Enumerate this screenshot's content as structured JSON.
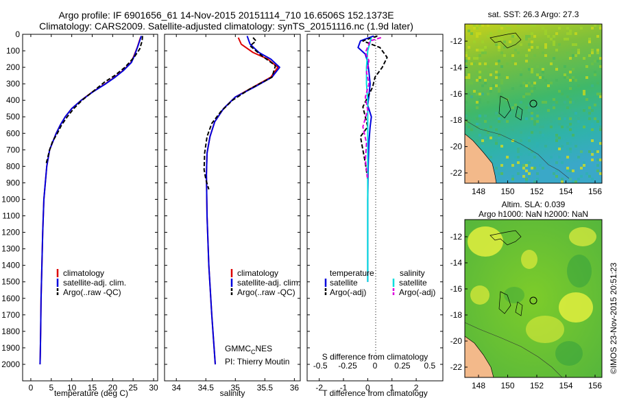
{
  "title": {
    "line1": "Argo profile: IF 6901656_61 14-Nov-2015 20151114_710 16.6506S 152.1373E",
    "line2": "Climatology: CARS2009. Satellite-adjusted climatology: synTS_20151116.nc (1.9d later)"
  },
  "map_sst": {
    "title": "sat. SST: 26.3 Argo: 27.3",
    "ytick_labels": [
      "-12",
      "-14",
      "-16",
      "-18",
      "-20",
      "-22"
    ],
    "xtick_labels": [
      "148",
      "150",
      "152",
      "154",
      "156"
    ]
  },
  "map_sla": {
    "title1": "Altim. SLA: 0.039",
    "title2": "Argo h1000: NaN h2000: NaN",
    "ytick_labels": [
      "-12",
      "-14",
      "-16",
      "-18",
      "-20",
      "-22"
    ],
    "xtick_labels": [
      "148",
      "150",
      "152",
      "154",
      "156"
    ]
  },
  "footer_stamp": "©IMOS 23-Nov-2015 20:51:23",
  "colors": {
    "climatology": "#dd0000",
    "satellite_adj": "#0000dd",
    "argo": "#000000",
    "sal_satellite": "#00dddd",
    "sal_argo": "#dd00dd"
  },
  "chart_data": [
    {
      "type": "line",
      "xlabel": "temperature (deg C)",
      "ylabel": "",
      "xlim": [
        -2,
        31
      ],
      "ylim": [
        2100,
        0
      ],
      "xticks": [
        0,
        5,
        10,
        15,
        20,
        25,
        30
      ],
      "yticks": [
        0,
        100,
        200,
        300,
        400,
        500,
        600,
        700,
        800,
        900,
        1000,
        1100,
        1200,
        1300,
        1400,
        1500,
        1600,
        1700,
        1800,
        1900,
        2000
      ],
      "legend": [
        "climatology",
        "satellite-adj. clim.",
        "Argo(..raw -QC)"
      ],
      "series": [
        {
          "name": "climatology",
          "style": "solid",
          "x": [
            26.8,
            26.0,
            25.2,
            24.5,
            22.5,
            20.5,
            18.2,
            15.0,
            12.3,
            10.0,
            8.4,
            7.2,
            6.2,
            5.4,
            4.6,
            3.9,
            3.2,
            2.9,
            2.7,
            2.5,
            2.4,
            2.3,
            2.25
          ],
          "depth": [
            20,
            80,
            130,
            170,
            220,
            260,
            300,
            350,
            400,
            450,
            500,
            550,
            600,
            650,
            700,
            800,
            1000,
            1200,
            1400,
            1600,
            1800,
            1950,
            2000
          ]
        },
        {
          "name": "satellite-adj. clim.",
          "style": "solid",
          "x": [
            27.0,
            26.2,
            25.3,
            24.6,
            22.6,
            20.6,
            18.3,
            15.1,
            12.3,
            10.0,
            8.4,
            7.2,
            6.2,
            5.4,
            4.6,
            3.9,
            3.2,
            2.9,
            2.7,
            2.5,
            2.4,
            2.3,
            2.25
          ],
          "depth": [
            10,
            70,
            130,
            170,
            220,
            260,
            300,
            350,
            400,
            450,
            500,
            550,
            600,
            650,
            700,
            800,
            1000,
            1200,
            1400,
            1600,
            1800,
            1950,
            2000
          ]
        },
        {
          "name": "Argo(..raw -QC)",
          "style": "dash",
          "x": [
            27.3,
            27.2,
            26.6,
            25.2,
            23.0,
            20.5,
            18.0,
            15.5,
            12.5,
            10.5,
            8.9,
            7.5,
            6.5,
            5.3,
            4.6,
            3.8
          ],
          "depth": [
            10,
            40,
            90,
            140,
            200,
            250,
            290,
            340,
            400,
            450,
            500,
            550,
            600,
            650,
            700,
            780
          ]
        }
      ]
    },
    {
      "type": "line",
      "xlabel": "salinity",
      "xlim": [
        33.8,
        36.1
      ],
      "ylim": [
        2100,
        0
      ],
      "xticks": [
        34,
        34.5,
        35,
        35.5,
        36
      ],
      "legend": [
        "climatology",
        "satellite-adj. clim.",
        "Argo(..raw -QC)"
      ],
      "annotation": {
        "name": "GMMC",
        "sub": "C",
        "suffix": "NES",
        "pi": "PI: Thierry Moutin"
      },
      "series": [
        {
          "name": "climatology",
          "style": "solid",
          "x": [
            35.05,
            35.1,
            35.3,
            35.55,
            35.72,
            35.6,
            35.3,
            35.0,
            34.8,
            34.65,
            34.57,
            34.52,
            34.51,
            34.52,
            34.55,
            34.6,
            34.64,
            34.66
          ],
          "depth": [
            20,
            60,
            110,
            150,
            200,
            260,
            320,
            380,
            450,
            530,
            620,
            720,
            850,
            1100,
            1400,
            1700,
            1900,
            2000
          ]
        },
        {
          "name": "satellite-adj. clim.",
          "style": "solid",
          "x": [
            35.2,
            35.25,
            35.4,
            35.6,
            35.75,
            35.62,
            35.32,
            35.0,
            34.8,
            34.65,
            34.57,
            34.52,
            34.51,
            34.52,
            34.55,
            34.6,
            34.64,
            34.66
          ],
          "depth": [
            10,
            60,
            110,
            150,
            200,
            260,
            320,
            380,
            450,
            530,
            620,
            720,
            850,
            1100,
            1400,
            1700,
            1900,
            2000
          ]
        },
        {
          "name": "Argo(..raw -QC)",
          "style": "dash",
          "x": [
            35.3,
            35.35,
            35.25,
            35.45,
            35.68,
            35.62,
            35.25,
            34.95,
            34.75,
            34.6,
            34.52,
            34.48,
            34.47,
            34.5,
            34.55
          ],
          "depth": [
            20,
            40,
            70,
            130,
            190,
            260,
            330,
            400,
            470,
            540,
            620,
            720,
            820,
            880,
            940
          ]
        }
      ]
    },
    {
      "type": "line",
      "xlabel": "T difference from climatology",
      "xlabel2": "S difference from climatology",
      "xlim": [
        -2.5,
        3.1
      ],
      "ylim": [
        2100,
        0
      ],
      "xticks": [
        -2,
        -1,
        0,
        1,
        2
      ],
      "xticks_top": [
        -0.5,
        -0.25,
        0,
        0.25,
        0.5
      ],
      "legend": {
        "temp_header": "temperature",
        "sal_header": "salinity",
        "satellite": "satellite",
        "argo": "Argo(-adj)"
      },
      "series": [
        {
          "name": "temperature satellite",
          "style": "solid",
          "x": [
            0.25,
            -0.3,
            -0.4,
            -0.1,
            0.0,
            0.05,
            0.1,
            0.05,
            0.0,
            0.15,
            0.1,
            0.05,
            0.02,
            0.0,
            0.0
          ],
          "depth": [
            10,
            40,
            80,
            120,
            170,
            230,
            300,
            370,
            430,
            500,
            560,
            650,
            800,
            1000,
            1500
          ]
        },
        {
          "name": "temperature Argo(-adj)",
          "style": "dash",
          "x": [
            0.4,
            -0.2,
            0.5,
            0.8,
            0.6,
            0.3,
            0.2,
            0.0,
            -0.2,
            -0.1,
            0.0,
            -0.3,
            -0.2,
            -0.1,
            0.0
          ],
          "depth": [
            10,
            40,
            80,
            140,
            200,
            260,
            320,
            380,
            440,
            500,
            560,
            620,
            700,
            780,
            880
          ]
        },
        {
          "name": "salinity satellite",
          "style": "solid",
          "x": [
            0.15,
            0.0,
            -0.05,
            -0.05,
            0.0,
            0.0,
            0.0,
            0.0,
            0.0
          ],
          "depth": [
            20,
            100,
            200,
            300,
            400,
            500,
            700,
            1000,
            1500
          ]
        },
        {
          "name": "salinity Argo(-adj)",
          "style": "dash",
          "x": [
            0.55,
            0.1,
            0.05,
            -0.1,
            0.05,
            -0.05,
            0.05,
            -0.1,
            0.0,
            -0.2,
            -0.05,
            -0.1,
            0.0
          ],
          "depth": [
            20,
            40,
            60,
            110,
            160,
            230,
            300,
            380,
            460,
            560,
            660,
            760,
            880
          ]
        }
      ]
    }
  ]
}
